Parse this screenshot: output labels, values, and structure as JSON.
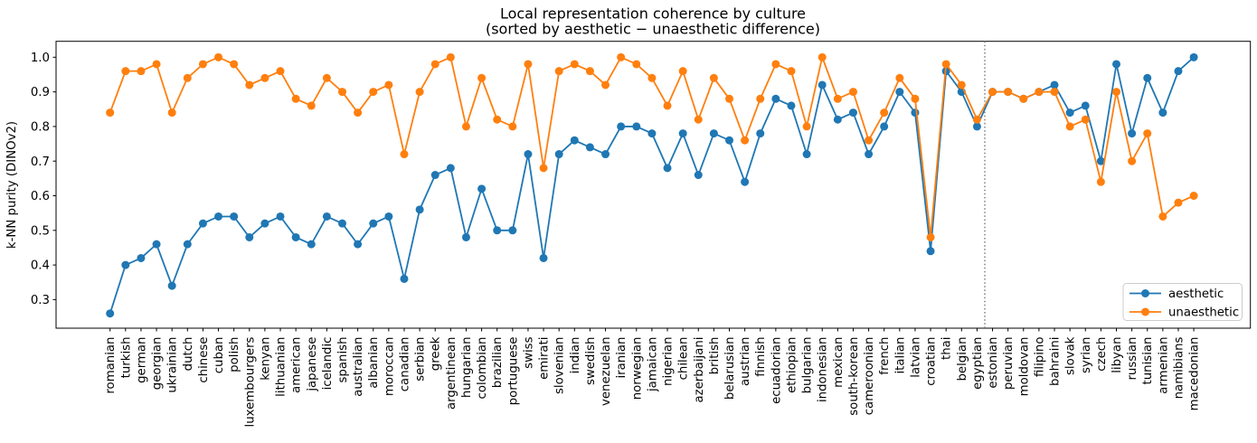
{
  "chart_data": {
    "type": "line",
    "title": "Local representation coherence by culture",
    "subtitle": "(sorted by aesthetic − unaesthetic difference)",
    "ylabel": "k-NN purity (DINOv2)",
    "xlabel": "",
    "ylim": [
      0.2175,
      1.046
    ],
    "grid": false,
    "legend_position": "lower-right",
    "ytick_labels": [
      "0.3",
      "0.4",
      "0.5",
      "0.6",
      "0.7",
      "0.8",
      "0.9",
      "1.0"
    ],
    "divider_index": 56.5,
    "divider_color": "#7f7f7f",
    "divider_style": "dotted",
    "categories": [
      "romanian",
      "turkish",
      "german",
      "georgian",
      "ukrainian",
      "dutch",
      "chinese",
      "cuban",
      "polish",
      "luxembourgers",
      "kenyan",
      "lithuanian",
      "american",
      "japanese",
      "icelandic",
      "spanish",
      "australian",
      "albanian",
      "moroccan",
      "canadian",
      "serbian",
      "greek",
      "argentinean",
      "hungarian",
      "colombian",
      "brazilian",
      "portuguese",
      "swiss",
      "emirati",
      "slovenian",
      "indian",
      "swedish",
      "venezuelan",
      "iranian",
      "norwegian",
      "jamaican",
      "nigerian",
      "chilean",
      "azerbaijani",
      "british",
      "belarusian",
      "austrian",
      "finnish",
      "ecuadorian",
      "ethiopian",
      "bulgarian",
      "indonesian",
      "mexican",
      "south-korean",
      "cameroonian",
      "french",
      "italian",
      "latvian",
      "croatian",
      "thai",
      "belgian",
      "egyptian",
      "estonian",
      "peruvian",
      "moldovan",
      "filipino",
      "bahraini",
      "slovak",
      "syrian",
      "czech",
      "libyan",
      "russian",
      "tunisian",
      "armenian",
      "namibians",
      "macedonian"
    ],
    "series": [
      {
        "name": "aesthetic",
        "color": "#1f77b4",
        "values": [
          0.26,
          0.4,
          0.42,
          0.46,
          0.34,
          0.46,
          0.52,
          0.54,
          0.54,
          0.48,
          0.52,
          0.54,
          0.48,
          0.46,
          0.54,
          0.52,
          0.46,
          0.52,
          0.54,
          0.36,
          0.56,
          0.66,
          0.68,
          0.48,
          0.62,
          0.5,
          0.5,
          0.72,
          0.42,
          0.72,
          0.76,
          0.74,
          0.72,
          0.8,
          0.8,
          0.78,
          0.68,
          0.78,
          0.66,
          0.78,
          0.76,
          0.64,
          0.78,
          0.88,
          0.86,
          0.72,
          0.92,
          0.82,
          0.84,
          0.72,
          0.8,
          0.9,
          0.84,
          0.44,
          0.96,
          0.9,
          0.8,
          0.9,
          0.9,
          0.88,
          0.9,
          0.92,
          0.84,
          0.86,
          0.7,
          0.98,
          0.78,
          0.94,
          0.84,
          0.96,
          1.0
        ]
      },
      {
        "name": "unaesthetic",
        "color": "#ff7f0e",
        "values": [
          0.84,
          0.96,
          0.96,
          0.98,
          0.84,
          0.94,
          0.98,
          1.0,
          0.98,
          0.92,
          0.94,
          0.96,
          0.88,
          0.86,
          0.94,
          0.9,
          0.84,
          0.9,
          0.92,
          0.72,
          0.9,
          0.98,
          1.0,
          0.8,
          0.94,
          0.82,
          0.8,
          0.98,
          0.68,
          0.96,
          0.98,
          0.96,
          0.92,
          1.0,
          0.98,
          0.94,
          0.86,
          0.96,
          0.82,
          0.94,
          0.88,
          0.76,
          0.88,
          0.98,
          0.96,
          0.8,
          1.0,
          0.88,
          0.9,
          0.76,
          0.84,
          0.94,
          0.88,
          0.48,
          0.98,
          0.92,
          0.82,
          0.9,
          0.9,
          0.88,
          0.9,
          0.9,
          0.8,
          0.82,
          0.64,
          0.9,
          0.7,
          0.78,
          0.54,
          0.58,
          0.6
        ]
      }
    ]
  }
}
